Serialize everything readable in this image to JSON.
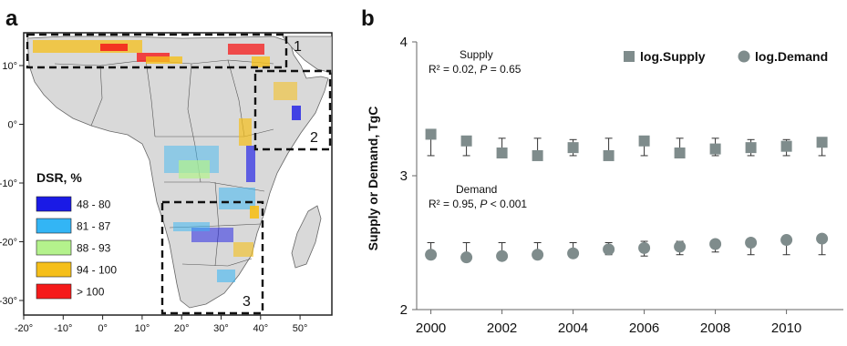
{
  "panel_a": {
    "label": "a",
    "x_ticks": [
      "-20°",
      "-10°",
      "0°",
      "10°",
      "20°",
      "30°",
      "40°",
      "50°"
    ],
    "y_ticks": [
      "10°",
      "0°",
      "-10°",
      "-20°",
      "-30°"
    ],
    "regions": [
      "1",
      "2",
      "3"
    ],
    "legend": {
      "title": "DSR, %",
      "items": [
        {
          "label": "48 - 80",
          "color": "#1a1ae6"
        },
        {
          "label": "81 - 87",
          "color": "#33b5f5"
        },
        {
          "label": "88 - 93",
          "color": "#b4f28c"
        },
        {
          "label": "94 - 100",
          "color": "#f5bf1a"
        },
        {
          "label": "> 100",
          "color": "#f51a1a"
        }
      ]
    }
  },
  "panel_b": {
    "label": "b",
    "supply_note": {
      "title": "Supply",
      "r2": "R² = 0.02, ",
      "p_label": "P",
      "p_value": " = 0.65"
    },
    "demand_note": {
      "title": "Demand",
      "r2": "R² = 0.95, ",
      "p_label": "P",
      "p_value": " < 0.001"
    }
  },
  "chart_data": {
    "type": "scatter",
    "ylabel": "Supply or Demand, TgC",
    "xlabel": "",
    "ylim": [
      2,
      4
    ],
    "xlim": [
      1999.6,
      2011.6
    ],
    "x_ticks": [
      2000,
      2002,
      2004,
      2006,
      2008,
      2010
    ],
    "y_ticks": [
      2,
      3,
      4
    ],
    "legend_position": "top-right",
    "series": [
      {
        "name": "log.Supply",
        "marker": "square",
        "color": "#7f8c8c",
        "x": [
          2000,
          2001,
          2002,
          2003,
          2004,
          2005,
          2006,
          2007,
          2008,
          2009,
          2010,
          2011
        ],
        "y": [
          3.31,
          3.26,
          3.17,
          3.15,
          3.21,
          3.15,
          3.26,
          3.17,
          3.2,
          3.21,
          3.22,
          3.25
        ],
        "err_up": [
          0.0,
          0.0,
          0.11,
          0.13,
          0.06,
          0.13,
          0.0,
          0.11,
          0.08,
          0.06,
          0.05,
          0.0
        ],
        "err_down": [
          0.16,
          0.11,
          0.0,
          0.0,
          0.06,
          0.0,
          0.11,
          0.0,
          0.05,
          0.06,
          0.07,
          0.1
        ]
      },
      {
        "name": "log.Demand",
        "marker": "circle",
        "color": "#7f8c8c",
        "x": [
          2000,
          2001,
          2002,
          2003,
          2004,
          2005,
          2006,
          2007,
          2008,
          2009,
          2010,
          2011
        ],
        "y": [
          2.41,
          2.39,
          2.4,
          2.41,
          2.42,
          2.45,
          2.46,
          2.47,
          2.49,
          2.5,
          2.52,
          2.53
        ],
        "err_up": [
          0.09,
          0.11,
          0.1,
          0.09,
          0.08,
          0.05,
          0.05,
          0.04,
          0.0,
          0.0,
          0.0,
          0.0
        ],
        "err_down": [
          0.0,
          0.0,
          0.0,
          0.0,
          0.0,
          0.04,
          0.06,
          0.06,
          0.06,
          0.09,
          0.11,
          0.12
        ]
      }
    ]
  }
}
